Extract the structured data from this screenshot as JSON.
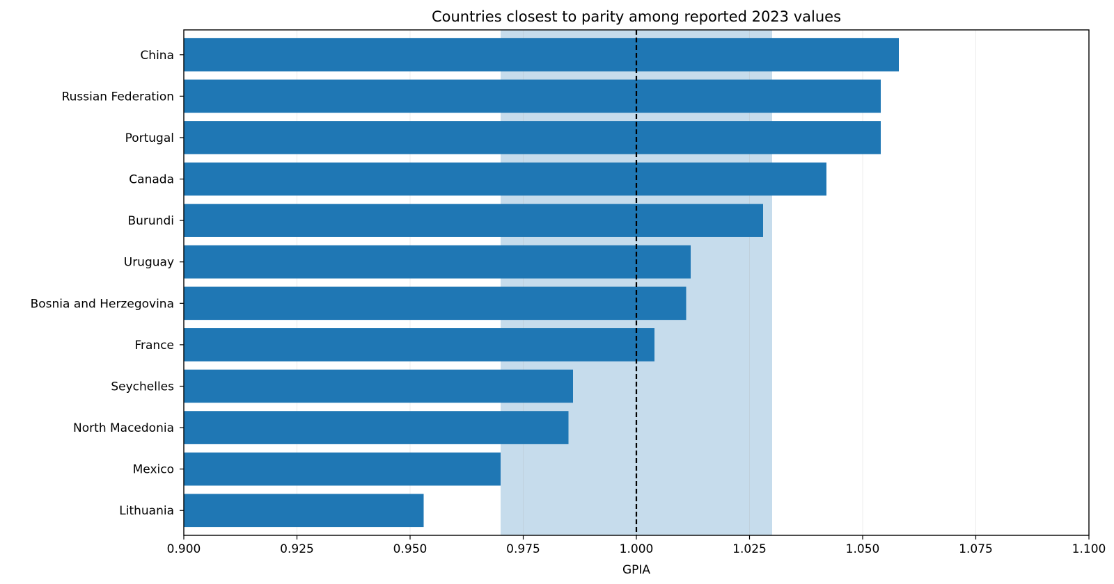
{
  "chart_data": {
    "type": "bar",
    "orientation": "horizontal",
    "title": "Countries closest to parity among reported 2023 values",
    "xlabel": "GPIA",
    "ylabel": "",
    "xlim": [
      0.9,
      1.1
    ],
    "xticks": [
      "0.900",
      "0.925",
      "0.950",
      "0.975",
      "1.000",
      "1.025",
      "1.050",
      "1.075",
      "1.100"
    ],
    "grid": "vertical",
    "parity_line": 1.0,
    "parity_band": [
      0.97,
      1.03
    ],
    "bar_color": "#1f77b4",
    "band_color": "#c6dcec",
    "categories": [
      "China",
      "Russian Federation",
      "Portugal",
      "Canada",
      "Burundi",
      "Uruguay",
      "Bosnia and Herzegovina",
      "France",
      "Seychelles",
      "North Macedonia",
      "Mexico",
      "Lithuania"
    ],
    "values": [
      1.058,
      1.054,
      1.054,
      1.042,
      1.028,
      1.012,
      1.011,
      1.004,
      0.986,
      0.985,
      0.97,
      0.953
    ]
  }
}
